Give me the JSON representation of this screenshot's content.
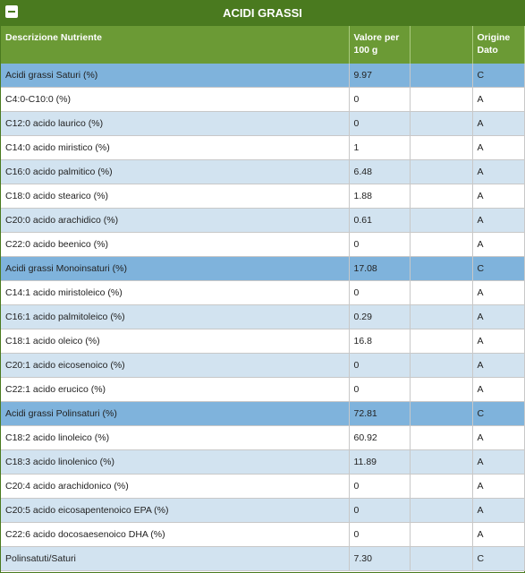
{
  "panel": {
    "title": "ACIDI GRASSI"
  },
  "table": {
    "headers": {
      "description": "Descrizione Nutriente",
      "value_line1": "Valore per",
      "value_line2": "100 g",
      "origin_line1": "Origine",
      "origin_line2": "Dato"
    },
    "rows": [
      {
        "name": "Acidi grassi Saturi (%)",
        "value": "9.97",
        "origin": "C",
        "style": "group"
      },
      {
        "name": "C4:0-C10:0 (%)",
        "value": "0",
        "origin": "A",
        "style": "plain"
      },
      {
        "name": "C12:0 acido laurico (%)",
        "value": "0",
        "origin": "A",
        "style": "alt"
      },
      {
        "name": "C14:0 acido miristico (%)",
        "value": "1",
        "origin": "A",
        "style": "plain"
      },
      {
        "name": "C16:0 acido palmitico (%)",
        "value": "6.48",
        "origin": "A",
        "style": "alt"
      },
      {
        "name": "C18:0 acido stearico (%)",
        "value": "1.88",
        "origin": "A",
        "style": "plain"
      },
      {
        "name": "C20:0 acido arachidico (%)",
        "value": "0.61",
        "origin": "A",
        "style": "alt"
      },
      {
        "name": "C22:0 acido beenico (%)",
        "value": "0",
        "origin": "A",
        "style": "plain"
      },
      {
        "name": "Acidi grassi Monoinsaturi (%)",
        "value": "17.08",
        "origin": "C",
        "style": "group"
      },
      {
        "name": "C14:1 acido miristoleico (%)",
        "value": "0",
        "origin": "A",
        "style": "plain"
      },
      {
        "name": "C16:1 acido palmitoleico (%)",
        "value": "0.29",
        "origin": "A",
        "style": "alt"
      },
      {
        "name": "C18:1 acido oleico (%)",
        "value": "16.8",
        "origin": "A",
        "style": "plain"
      },
      {
        "name": "C20:1 acido eicosenoico (%)",
        "value": "0",
        "origin": "A",
        "style": "alt"
      },
      {
        "name": "C22:1 acido erucico (%)",
        "value": "0",
        "origin": "A",
        "style": "plain"
      },
      {
        "name": "Acidi grassi Polinsaturi (%)",
        "value": "72.81",
        "origin": "C",
        "style": "group"
      },
      {
        "name": "C18:2 acido linoleico (%)",
        "value": "60.92",
        "origin": "A",
        "style": "plain"
      },
      {
        "name": "C18:3 acido linolenico (%)",
        "value": "11.89",
        "origin": "A",
        "style": "alt"
      },
      {
        "name": "C20:4 acido arachidonico (%)",
        "value": "0",
        "origin": "A",
        "style": "plain"
      },
      {
        "name": "C20:5 acido eicosapentenoico EPA (%)",
        "value": "0",
        "origin": "A",
        "style": "alt"
      },
      {
        "name": "C22:6 acido docosaesenoico DHA (%)",
        "value": "0",
        "origin": "A",
        "style": "plain"
      },
      {
        "name": "Polinsatuti/Saturi",
        "value": "7.30",
        "origin": "C",
        "style": "alt"
      }
    ]
  },
  "colors": {
    "title_bg": "#4a7a1f",
    "header_bg": "#6b9a35",
    "group_row": "#7fb3dc",
    "alt_row": "#d2e3f0",
    "plain_row": "#ffffff"
  },
  "icons": {
    "toggle": "minus-icon"
  }
}
